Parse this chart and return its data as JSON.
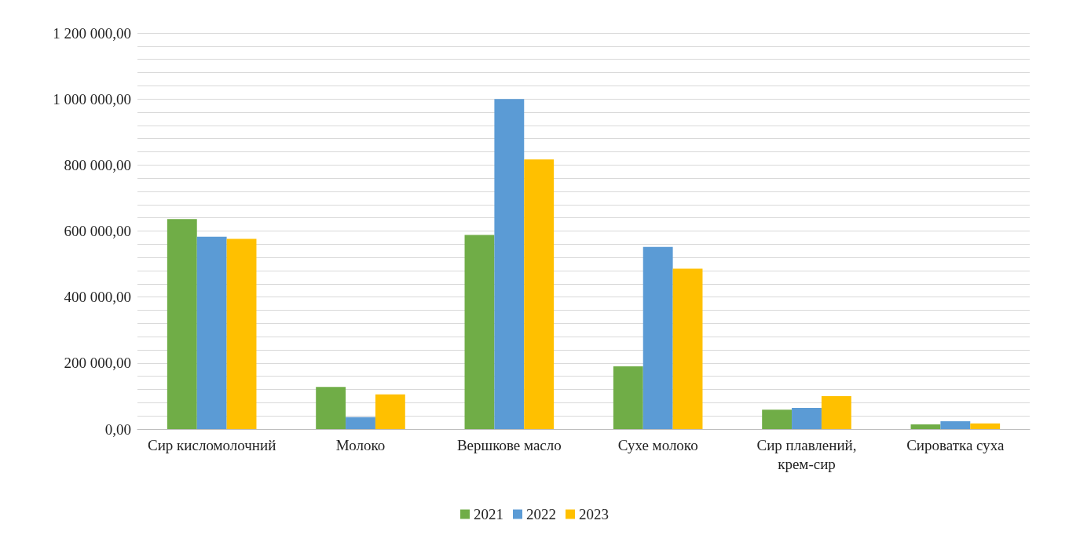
{
  "chart_data": {
    "type": "bar",
    "categories": [
      "Сир кисломолочний",
      "Молоко",
      "Вершкове масло",
      "Сухе молоко",
      "Сир плавлений, крем-сир",
      "Сироватка суха"
    ],
    "series": [
      {
        "name": "2021",
        "color": "#70ad47",
        "values": [
          636000,
          128000,
          588000,
          190000,
          59000,
          14000
        ]
      },
      {
        "name": "2022",
        "color": "#5b9bd5",
        "values": [
          583000,
          36000,
          1000000,
          552000,
          64000,
          24000
        ]
      },
      {
        "name": "2023",
        "color": "#ffc000",
        "values": [
          576000,
          105000,
          817000,
          486000,
          100000,
          17000
        ]
      }
    ],
    "ylim": [
      0,
      1200000
    ],
    "yticks": [
      {
        "value": 0,
        "label": "0,00"
      },
      {
        "value": 40000,
        "label": null
      },
      {
        "value": 80000,
        "label": null
      },
      {
        "value": 120000,
        "label": null
      },
      {
        "value": 160000,
        "label": null
      },
      {
        "value": 200000,
        "label": "200 000,00"
      },
      {
        "value": 240000,
        "label": null
      },
      {
        "value": 280000,
        "label": null
      },
      {
        "value": 320000,
        "label": null
      },
      {
        "value": 360000,
        "label": null
      },
      {
        "value": 400000,
        "label": "400 000,00"
      },
      {
        "value": 440000,
        "label": null
      },
      {
        "value": 480000,
        "label": null
      },
      {
        "value": 520000,
        "label": null
      },
      {
        "value": 560000,
        "label": null
      },
      {
        "value": 600000,
        "label": "600 000,00"
      },
      {
        "value": 640000,
        "label": null
      },
      {
        "value": 680000,
        "label": null
      },
      {
        "value": 720000,
        "label": null
      },
      {
        "value": 760000,
        "label": null
      },
      {
        "value": 800000,
        "label": "800 000,00"
      },
      {
        "value": 840000,
        "label": null
      },
      {
        "value": 880000,
        "label": null
      },
      {
        "value": 920000,
        "label": null
      },
      {
        "value": 960000,
        "label": null
      },
      {
        "value": 1000000,
        "label": "1 000 000,00"
      },
      {
        "value": 1040000,
        "label": null
      },
      {
        "value": 1080000,
        "label": null
      },
      {
        "value": 1120000,
        "label": null
      },
      {
        "value": 1160000,
        "label": null
      },
      {
        "value": 1200000,
        "label": "1 200 000,00"
      }
    ],
    "grid": "y",
    "legend": "bottom"
  }
}
